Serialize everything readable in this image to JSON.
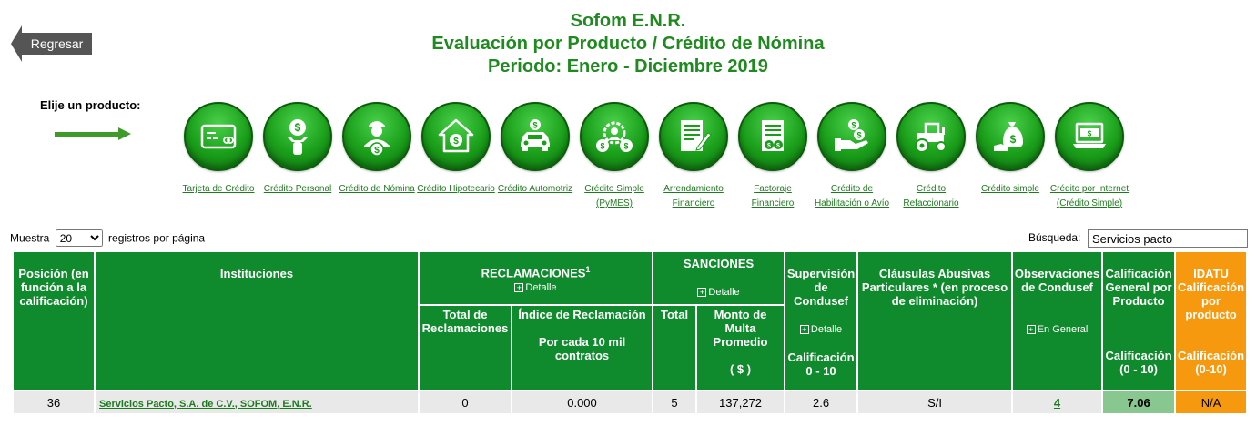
{
  "nav": {
    "back_label": "Regresar"
  },
  "header": {
    "line1": "Sofom E.N.R.",
    "line2": "Evaluación por Producto / Crédito de Nómina",
    "line3": "Periodo: Enero - Diciembre 2019"
  },
  "selector": {
    "label": "Elije un producto:"
  },
  "products": [
    {
      "label": "Tarjeta de Crédito",
      "icon": "credit-card-icon"
    },
    {
      "label": "Crédito Personal",
      "icon": "personal-credit-icon"
    },
    {
      "label": "Crédito de Nómina",
      "icon": "payroll-worker-icon"
    },
    {
      "label": "Crédito Hipotecario",
      "icon": "house-icon"
    },
    {
      "label": "Crédito Automotriz",
      "icon": "car-icon"
    },
    {
      "label": "Crédito Simple (PyMES)",
      "icon": "gear-coins-icon"
    },
    {
      "label": "Arrendamiento Financiero",
      "icon": "document-pen-icon"
    },
    {
      "label": "Factoraje Financiero",
      "icon": "invoice-icon"
    },
    {
      "label": "Crédito de Habilitación o Avío",
      "icon": "hand-coins-icon"
    },
    {
      "label": "Crédito Refaccionario",
      "icon": "tractor-icon"
    },
    {
      "label": "Crédito simple",
      "icon": "money-bag-icon"
    },
    {
      "label": "Crédito por Internet (Crédito Simple)",
      "icon": "laptop-money-icon"
    }
  ],
  "controls": {
    "muestra_label": "Muestra",
    "page_size": "20",
    "per_page_label": "registros por página",
    "search_label": "Búsqueda:",
    "search_value": "Servicios pacto"
  },
  "table": {
    "headers": {
      "posicion": "Posición (en función a la calificación)",
      "instituciones": "Instituciones",
      "reclamaciones": "RECLAMACIONES",
      "reclamaciones_sup": "1",
      "sanciones": "SANCIONES",
      "detalle": "Detalle",
      "supervision": "Supervisión de Condusef",
      "clausulas": "Cláusulas Abusivas Particulares * (en proceso de eliminación)",
      "observaciones": "Observaciones de Condusef",
      "en_general": "En General",
      "calificacion_general": "Calificación General por Producto",
      "idatu": "IDATU Calificación por producto",
      "total_reclamaciones": "Total de Reclamaciones",
      "indice": "Índice de Reclamación",
      "por_cada": "Por cada 10 mil contratos",
      "total": "Total",
      "monto": "Monto de Multa Promedio",
      "monto_unit": "( $ )",
      "calif_0_10": "Calificación 0 - 10",
      "calif_paren": "Calificación (0 - 10)",
      "calif_idatu": "Calificación (0-10)"
    },
    "row": {
      "posicion": "36",
      "institucion": "Servicios Pacto, S.A. de C.V., SOFOM, E.N.R.",
      "total_reclamaciones": "0",
      "indice": "0.000",
      "sanciones_total": "5",
      "monto": "137,272",
      "supervision": "2.6",
      "clausulas": "S/I",
      "observaciones": "4",
      "calificacion": "7.06",
      "idatu": "N/A"
    }
  },
  "colors": {
    "brand_green": "#0f8a2c",
    "title_green": "#1f8a1f",
    "idatu_orange": "#f7990f",
    "score_green": "#88c890"
  }
}
